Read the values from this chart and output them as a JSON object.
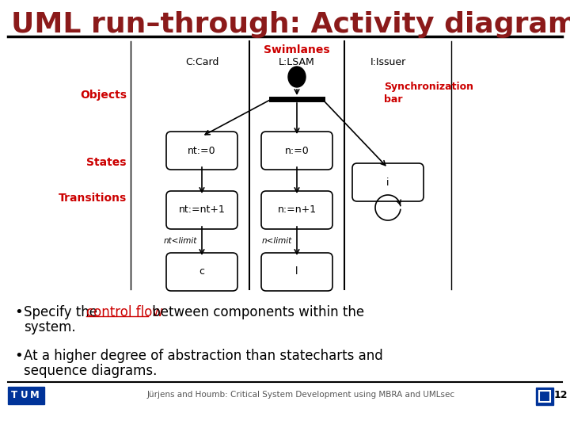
{
  "title": "UML run–through: Activity diagrams",
  "title_color": "#8B1A1A",
  "title_fontsize": 26,
  "bg_color": "#FFFFFF",
  "bullet1_prefix": "Specify the ",
  "bullet1_highlight": "control flow",
  "bullet1_suffix": " between components within the",
  "bullet1_line2": "system.",
  "bullet2_line1": "At a higher degree of abstraction than statecharts and",
  "bullet2_line2": "sequence diagrams.",
  "bullet_color": "#000000",
  "highlight_color": "#CC0000",
  "footer_text": "Jürjens and Houmb: Critical System Development using MBRA and UMLsec",
  "footer_page": "12",
  "diagram": {
    "swimlane_label": "Swimlanes",
    "swimlane_color": "#CC0000",
    "objects_label": "Objects",
    "objects_color": "#CC0000",
    "states_label": "States",
    "states_color": "#CC0000",
    "transitions_label": "Transitions",
    "transitions_color": "#CC0000",
    "col1_label": "C:Card",
    "col2_label": "L:LSAM",
    "col3_label": "I:Issuer",
    "sync_bar_label": "Synchronization\nbar",
    "sync_bar_color": "#CC0000",
    "guard_col1": "nt<limit",
    "guard_col2": "n<limit"
  }
}
